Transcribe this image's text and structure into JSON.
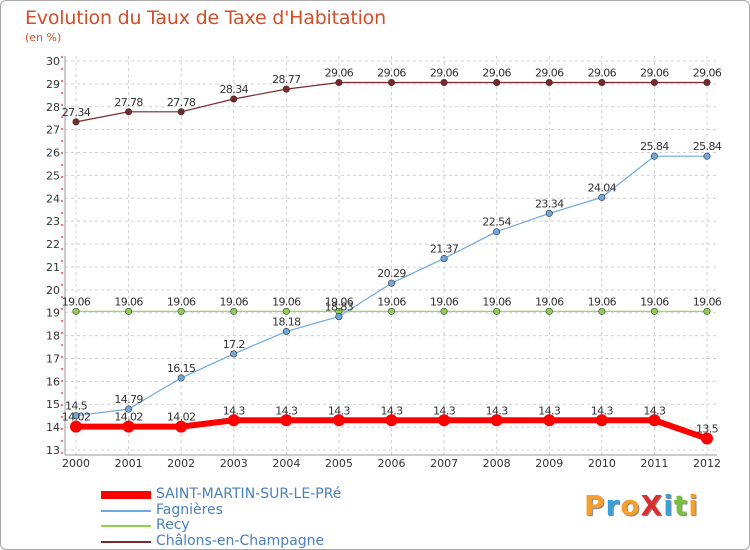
{
  "title": "Evolution du Taux de Taxe d'Habitation",
  "subtitle": "(en %)",
  "logo_text": "ProXiti",
  "colors": {
    "title": "#d14f2a",
    "grid": "#d0d0d0",
    "axis": "#333333",
    "legend_text": "#4a7fc0"
  },
  "chart_data": {
    "type": "line",
    "x": [
      "2000",
      "2001",
      "2002",
      "2003",
      "2004",
      "2005",
      "2006",
      "2007",
      "2008",
      "2009",
      "2010",
      "2011",
      "2012"
    ],
    "ylim": [
      13,
      30
    ],
    "yticks": [
      13,
      14,
      15,
      16,
      17,
      18,
      19,
      20,
      21,
      22,
      23,
      24,
      25,
      26,
      27,
      28,
      29,
      30
    ],
    "grid": true,
    "legend_position": "bottom-left",
    "series": [
      {
        "name": "SAINT-MARTIN-SUR-LE-PRé",
        "color": "#ff0000",
        "values": [
          14.02,
          14.02,
          14.02,
          14.3,
          14.3,
          14.3,
          14.3,
          14.3,
          14.3,
          14.3,
          14.3,
          14.3,
          13.5
        ],
        "labels": [
          "14.02",
          "14.02",
          "14.02",
          "14.3",
          "14.3",
          "14.3",
          "14.3",
          "14.3",
          "14.3",
          "14.3",
          "14.3",
          "14.3",
          "13.5"
        ]
      },
      {
        "name": "Fagnières",
        "color": "#6fa8dc",
        "values": [
          14.5,
          14.79,
          16.15,
          17.2,
          18.18,
          18.83,
          20.29,
          21.37,
          22.54,
          23.34,
          24.04,
          25.84,
          25.84
        ],
        "labels": [
          "14.5",
          "14.79",
          "16.15",
          "17.2",
          "18.18",
          "18.83",
          "20.29",
          "21.37",
          "22.54",
          "23.34",
          "24.04",
          "25.84",
          "25.84"
        ]
      },
      {
        "name": "Recy",
        "color": "#8fd14f",
        "values": [
          19.06,
          19.06,
          19.06,
          19.06,
          19.06,
          19.06,
          19.06,
          19.06,
          19.06,
          19.06,
          19.06,
          19.06,
          19.06
        ],
        "labels": [
          "19.06",
          "19.06",
          "19.06",
          "19.06",
          "19.06",
          "19.06",
          "19.06",
          "19.06",
          "19.06",
          "19.06",
          "19.06",
          "19.06",
          "19.06"
        ]
      },
      {
        "name": "Châlons-en-Champagne",
        "color": "#7a2a2a",
        "values": [
          27.34,
          27.78,
          27.78,
          28.34,
          28.77,
          29.06,
          29.06,
          29.06,
          29.06,
          29.06,
          29.06,
          29.06,
          29.06
        ],
        "labels": [
          "27.34",
          "27.78",
          "27.78",
          "28.34",
          "28.77",
          "29.06",
          "29.06",
          "29.06",
          "29.06",
          "29.06",
          "29.06",
          "29.06",
          "29.06"
        ]
      }
    ]
  }
}
